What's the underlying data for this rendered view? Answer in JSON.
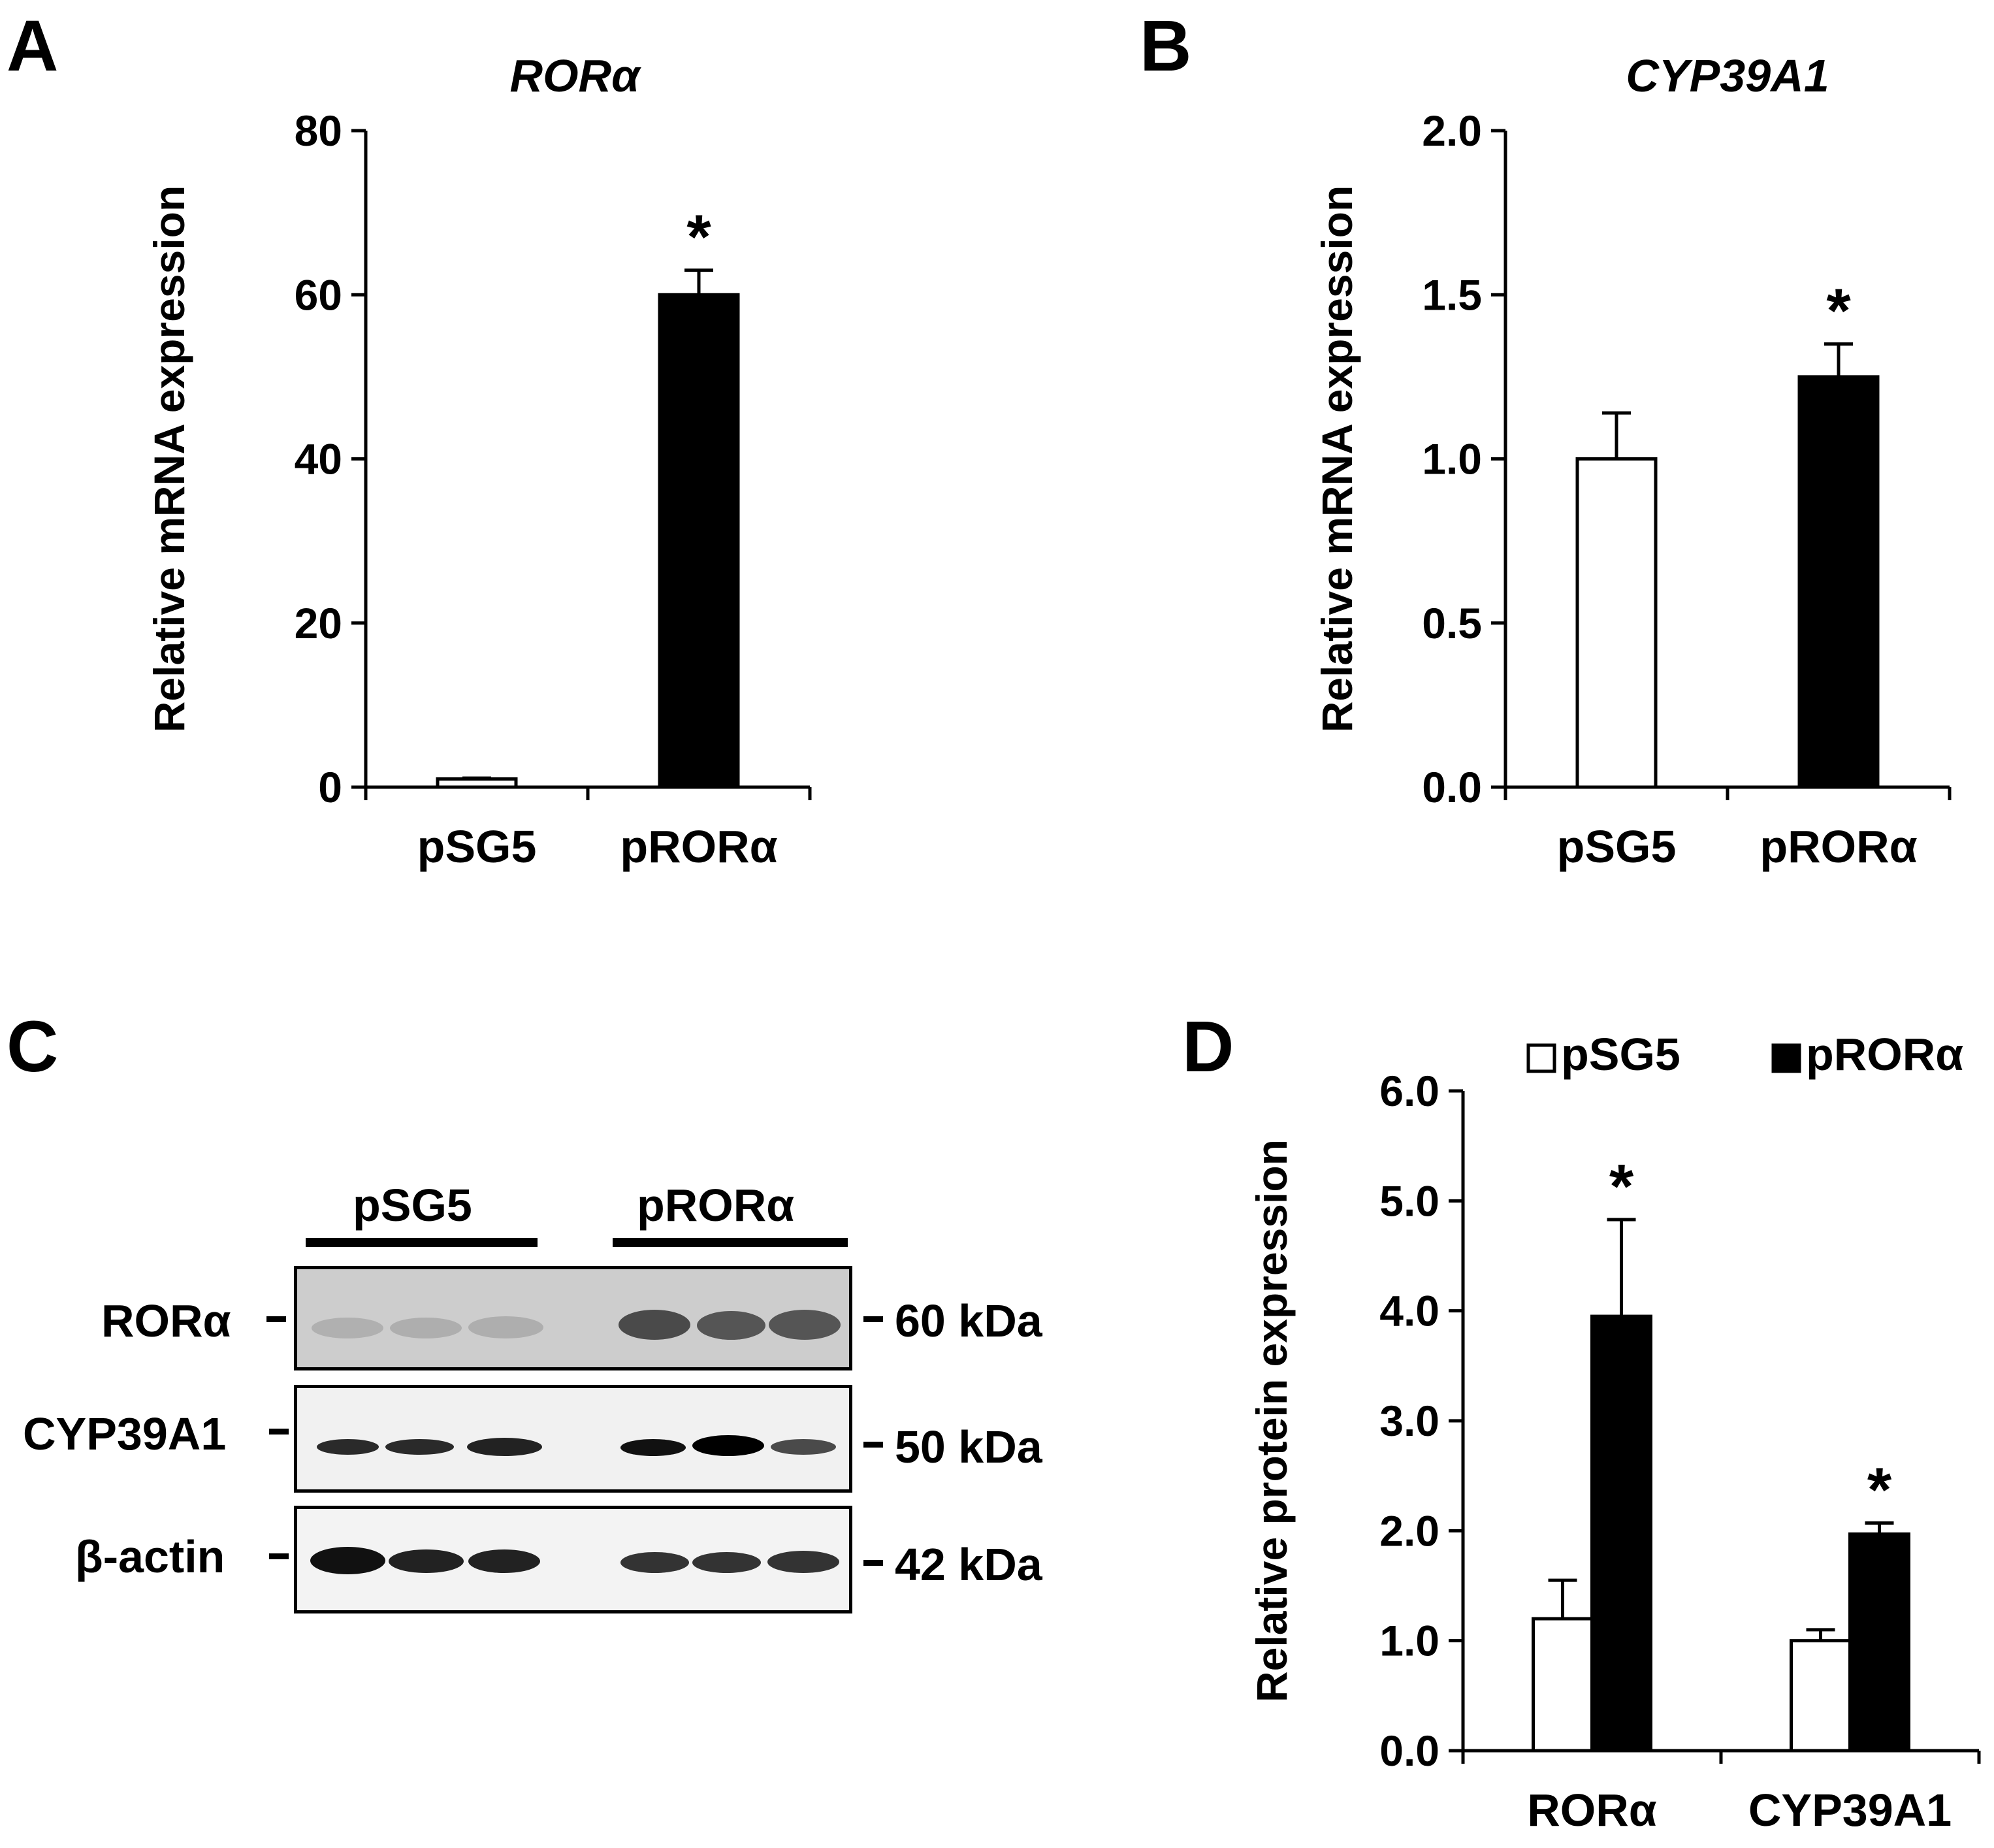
{
  "panels": {
    "A": {
      "letter": "A"
    },
    "B": {
      "letter": "B"
    },
    "C": {
      "letter": "C"
    },
    "D": {
      "letter": "D"
    }
  },
  "chart_data": [
    {
      "panel": "A",
      "type": "bar",
      "title": "RORα",
      "ylabel": "Relative mRNA expression",
      "categories": [
        "pSG5",
        "pRORα"
      ],
      "ylim": [
        0,
        80
      ],
      "yticks": [
        "0",
        "20",
        "40",
        "60",
        "80"
      ],
      "series": [
        {
          "values": [
            1,
            60
          ],
          "errors": [
            0.1,
            3
          ],
          "colors": [
            "#ffffff",
            "#000000"
          ]
        }
      ],
      "annotations": [
        "",
        "*"
      ]
    },
    {
      "panel": "B",
      "type": "bar",
      "title": "CYP39A1",
      "ylabel": "Relative mRNA expression",
      "categories": [
        "pSG5",
        "pRORα"
      ],
      "ylim": [
        0,
        2.0
      ],
      "yticks": [
        "0.0",
        "0.5",
        "1.0",
        "1.5",
        "2.0"
      ],
      "series": [
        {
          "values": [
            1.0,
            1.25
          ],
          "errors": [
            0.14,
            0.1
          ],
          "colors": [
            "#ffffff",
            "#000000"
          ]
        }
      ],
      "annotations": [
        "",
        "*"
      ]
    },
    {
      "panel": "D",
      "type": "bar",
      "title": "",
      "ylabel": "Relative protein expression",
      "categories": [
        "RORα",
        "CYP39A1"
      ],
      "ylim": [
        0,
        6.0
      ],
      "yticks": [
        "0.0",
        "1.0",
        "2.0",
        "3.0",
        "4.0",
        "5.0",
        "6.0"
      ],
      "legend_position": "top",
      "series": [
        {
          "name": "pSG5",
          "values": [
            1.2,
            1.0
          ],
          "errors": [
            0.35,
            0.1
          ],
          "color": "#ffffff"
        },
        {
          "name": "pRORα",
          "values": [
            3.95,
            1.97
          ],
          "errors": [
            0.88,
            0.1
          ],
          "color": "#000000"
        }
      ],
      "annotations": [
        "*",
        "*"
      ]
    }
  ],
  "western_blot": {
    "groups": [
      "pSG5",
      "pRORα"
    ],
    "rows": [
      {
        "protein": "RORα",
        "size": "60 kDa"
      },
      {
        "protein": "CYP39A1",
        "size": "50 kDa"
      },
      {
        "protein": "β-actin",
        "size": "42 kDa"
      }
    ]
  }
}
